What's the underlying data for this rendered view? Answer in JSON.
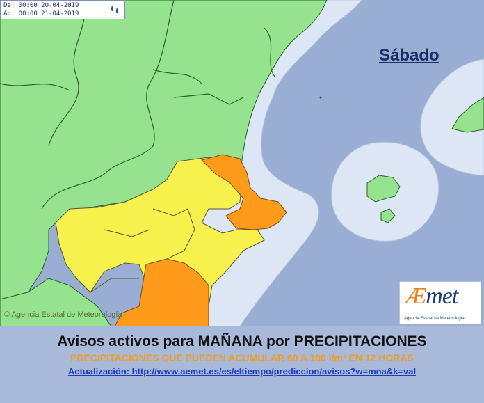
{
  "validity": {
    "from": "De: 00:00 20-04-2019",
    "to": "A:  00:00 21-04-2019",
    "icon": "rain-drops-icon"
  },
  "day_label": "Sábado",
  "agency_credit": "© Agencia Estatal de Meteorología",
  "logo": {
    "word_prefix": "Æ",
    "word_rest": "met",
    "subtitle": "Agencia Estatal de Meteorología"
  },
  "footer": {
    "title": "Avisos activos para MAÑANA por PRECIPITACIONES",
    "subtitle": "PRECIPITACIONES QUE PUEDEN ACUMULAR 60 A 100 l/m² EN 12 HORAS",
    "link": "Actualización:  http://www.aemet.es/es/eltiempo/prediccion/avisos?w=mna&k=val"
  },
  "colors": {
    "sea": "#9aaed3",
    "coastal_zone": "#dde6f4",
    "green_level": "#95e38e",
    "yellow_level": "#f6f14c",
    "orange_level": "#ff9a1a",
    "border_line": "#2d5f2a"
  }
}
